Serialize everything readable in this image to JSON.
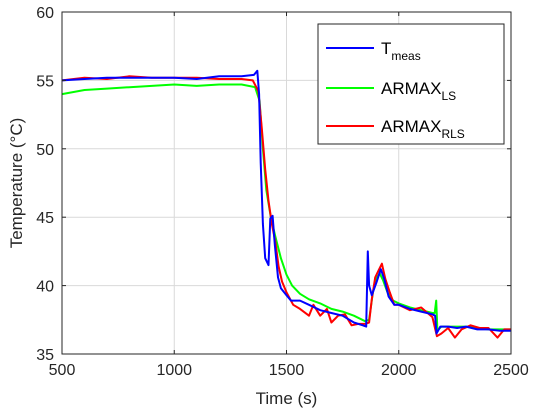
{
  "chart_data": {
    "type": "line",
    "xlabel": "Time (s)",
    "ylabel": "Temperature (°C)",
    "xlim": [
      500,
      2500
    ],
    "ylim": [
      35,
      60
    ],
    "xticks": [
      500,
      1000,
      1500,
      2000,
      2500
    ],
    "yticks": [
      35,
      40,
      45,
      50,
      55,
      60
    ],
    "grid": true,
    "legend_position": "top-right",
    "series": [
      {
        "name": "T_meas",
        "legend_main": "T",
        "legend_sub": "meas",
        "color": "#0000ff",
        "points": [
          [
            500,
            55.0
          ],
          [
            600,
            55.1
          ],
          [
            700,
            55.2
          ],
          [
            800,
            55.2
          ],
          [
            900,
            55.2
          ],
          [
            1000,
            55.2
          ],
          [
            1100,
            55.1
          ],
          [
            1200,
            55.3
          ],
          [
            1300,
            55.3
          ],
          [
            1355,
            55.4
          ],
          [
            1370,
            55.7
          ],
          [
            1378,
            54.0
          ],
          [
            1385,
            49.0
          ],
          [
            1395,
            44.5
          ],
          [
            1405,
            42.0
          ],
          [
            1420,
            41.5
          ],
          [
            1428,
            44.9
          ],
          [
            1438,
            45.1
          ],
          [
            1448,
            43.0
          ],
          [
            1462,
            40.6
          ],
          [
            1475,
            39.8
          ],
          [
            1500,
            39.3
          ],
          [
            1520,
            38.9
          ],
          [
            1560,
            38.9
          ],
          [
            1600,
            38.6
          ],
          [
            1650,
            38.2
          ],
          [
            1700,
            38.0
          ],
          [
            1750,
            37.8
          ],
          [
            1800,
            37.3
          ],
          [
            1840,
            37.1
          ],
          [
            1855,
            37.0
          ],
          [
            1862,
            42.5
          ],
          [
            1868,
            40.0
          ],
          [
            1880,
            39.3
          ],
          [
            1900,
            40.2
          ],
          [
            1920,
            41.2
          ],
          [
            1935,
            40.5
          ],
          [
            1955,
            39.2
          ],
          [
            1980,
            38.6
          ],
          [
            2000,
            38.6
          ],
          [
            2050,
            38.3
          ],
          [
            2100,
            38.1
          ],
          [
            2150,
            37.9
          ],
          [
            2162,
            37.8
          ],
          [
            2168,
            36.5
          ],
          [
            2185,
            37.0
          ],
          [
            2220,
            37.0
          ],
          [
            2260,
            36.9
          ],
          [
            2300,
            37.0
          ],
          [
            2350,
            36.8
          ],
          [
            2400,
            36.8
          ],
          [
            2450,
            36.7
          ],
          [
            2500,
            36.7
          ]
        ]
      },
      {
        "name": "ARMAX_LS",
        "legend_main": "ARMAX",
        "legend_sub": "LS",
        "color": "#00ff00",
        "points": [
          [
            500,
            54.0
          ],
          [
            600,
            54.3
          ],
          [
            700,
            54.4
          ],
          [
            800,
            54.5
          ],
          [
            900,
            54.6
          ],
          [
            1000,
            54.7
          ],
          [
            1100,
            54.6
          ],
          [
            1200,
            54.7
          ],
          [
            1300,
            54.7
          ],
          [
            1360,
            54.5
          ],
          [
            1380,
            53.5
          ],
          [
            1395,
            50.0
          ],
          [
            1410,
            47.0
          ],
          [
            1430,
            45.0
          ],
          [
            1450,
            43.6
          ],
          [
            1475,
            42.0
          ],
          [
            1500,
            40.8
          ],
          [
            1525,
            40.0
          ],
          [
            1560,
            39.4
          ],
          [
            1600,
            39.0
          ],
          [
            1650,
            38.7
          ],
          [
            1700,
            38.3
          ],
          [
            1750,
            38.1
          ],
          [
            1800,
            37.8
          ],
          [
            1850,
            37.4
          ],
          [
            1868,
            37.5
          ],
          [
            1885,
            39.5
          ],
          [
            1900,
            40.5
          ],
          [
            1915,
            40.9
          ],
          [
            1930,
            40.4
          ],
          [
            1950,
            39.5
          ],
          [
            1975,
            38.9
          ],
          [
            2000,
            38.7
          ],
          [
            2050,
            38.4
          ],
          [
            2100,
            38.2
          ],
          [
            2150,
            38.0
          ],
          [
            2160,
            38.0
          ],
          [
            2167,
            38.9
          ],
          [
            2172,
            36.7
          ],
          [
            2190,
            37.0
          ],
          [
            2240,
            37.0
          ],
          [
            2300,
            37.0
          ],
          [
            2350,
            36.9
          ],
          [
            2400,
            36.8
          ],
          [
            2450,
            36.8
          ],
          [
            2500,
            36.8
          ]
        ]
      },
      {
        "name": "ARMAX_RLS",
        "legend_main": "ARMAX",
        "legend_sub": "RLS",
        "color": "#ff0000",
        "points": [
          [
            500,
            55.0
          ],
          [
            600,
            55.2
          ],
          [
            700,
            55.1
          ],
          [
            800,
            55.3
          ],
          [
            900,
            55.2
          ],
          [
            1000,
            55.2
          ],
          [
            1100,
            55.2
          ],
          [
            1200,
            55.1
          ],
          [
            1300,
            55.1
          ],
          [
            1350,
            55.0
          ],
          [
            1375,
            54.2
          ],
          [
            1390,
            51.5
          ],
          [
            1405,
            48.5
          ],
          [
            1420,
            46.2
          ],
          [
            1435,
            44.5
          ],
          [
            1450,
            43.2
          ],
          [
            1465,
            41.4
          ],
          [
            1480,
            40.3
          ],
          [
            1500,
            39.5
          ],
          [
            1530,
            38.6
          ],
          [
            1560,
            38.3
          ],
          [
            1600,
            37.8
          ],
          [
            1620,
            38.6
          ],
          [
            1650,
            37.8
          ],
          [
            1680,
            38.3
          ],
          [
            1700,
            37.3
          ],
          [
            1730,
            37.8
          ],
          [
            1760,
            37.9
          ],
          [
            1790,
            37.1
          ],
          [
            1820,
            37.2
          ],
          [
            1850,
            37.2
          ],
          [
            1868,
            37.3
          ],
          [
            1880,
            39.0
          ],
          [
            1895,
            40.6
          ],
          [
            1910,
            41.1
          ],
          [
            1925,
            41.6
          ],
          [
            1940,
            40.5
          ],
          [
            1960,
            39.5
          ],
          [
            1980,
            38.6
          ],
          [
            2000,
            38.6
          ],
          [
            2050,
            38.2
          ],
          [
            2100,
            38.4
          ],
          [
            2150,
            37.7
          ],
          [
            2170,
            36.3
          ],
          [
            2190,
            36.5
          ],
          [
            2220,
            36.9
          ],
          [
            2250,
            36.2
          ],
          [
            2280,
            36.8
          ],
          [
            2320,
            37.1
          ],
          [
            2360,
            36.9
          ],
          [
            2400,
            36.9
          ],
          [
            2440,
            36.2
          ],
          [
            2470,
            36.8
          ],
          [
            2500,
            36.8
          ]
        ]
      }
    ]
  }
}
